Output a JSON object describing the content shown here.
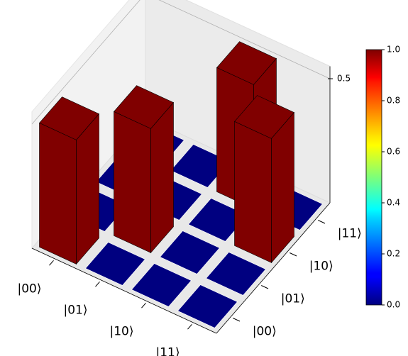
{
  "chart_data": {
    "type": "bar3d",
    "x_categories": [
      "|00⟩",
      "|01⟩",
      "|10⟩",
      "|11⟩"
    ],
    "y_categories": [
      "|00⟩",
      "|01⟩",
      "|10⟩",
      "|11⟩"
    ],
    "values": [
      [
        0.5,
        0,
        0,
        0
      ],
      [
        0,
        0.5,
        0,
        0
      ],
      [
        0,
        0,
        0,
        0.5
      ],
      [
        0,
        0,
        0.5,
        0
      ]
    ],
    "zticks": [
      0.5
    ],
    "colorbar": {
      "lim": [
        0,
        1
      ],
      "ticks": [
        {
          "value": 0,
          "label": "0.0"
        },
        {
          "value": 0.2,
          "label": "0.2"
        },
        {
          "value": 0.4,
          "label": "0.4"
        },
        {
          "value": 0.6,
          "label": "0.6"
        },
        {
          "value": 0.8,
          "label": "0.8"
        },
        {
          "value": 1,
          "label": "1.0"
        }
      ]
    }
  }
}
